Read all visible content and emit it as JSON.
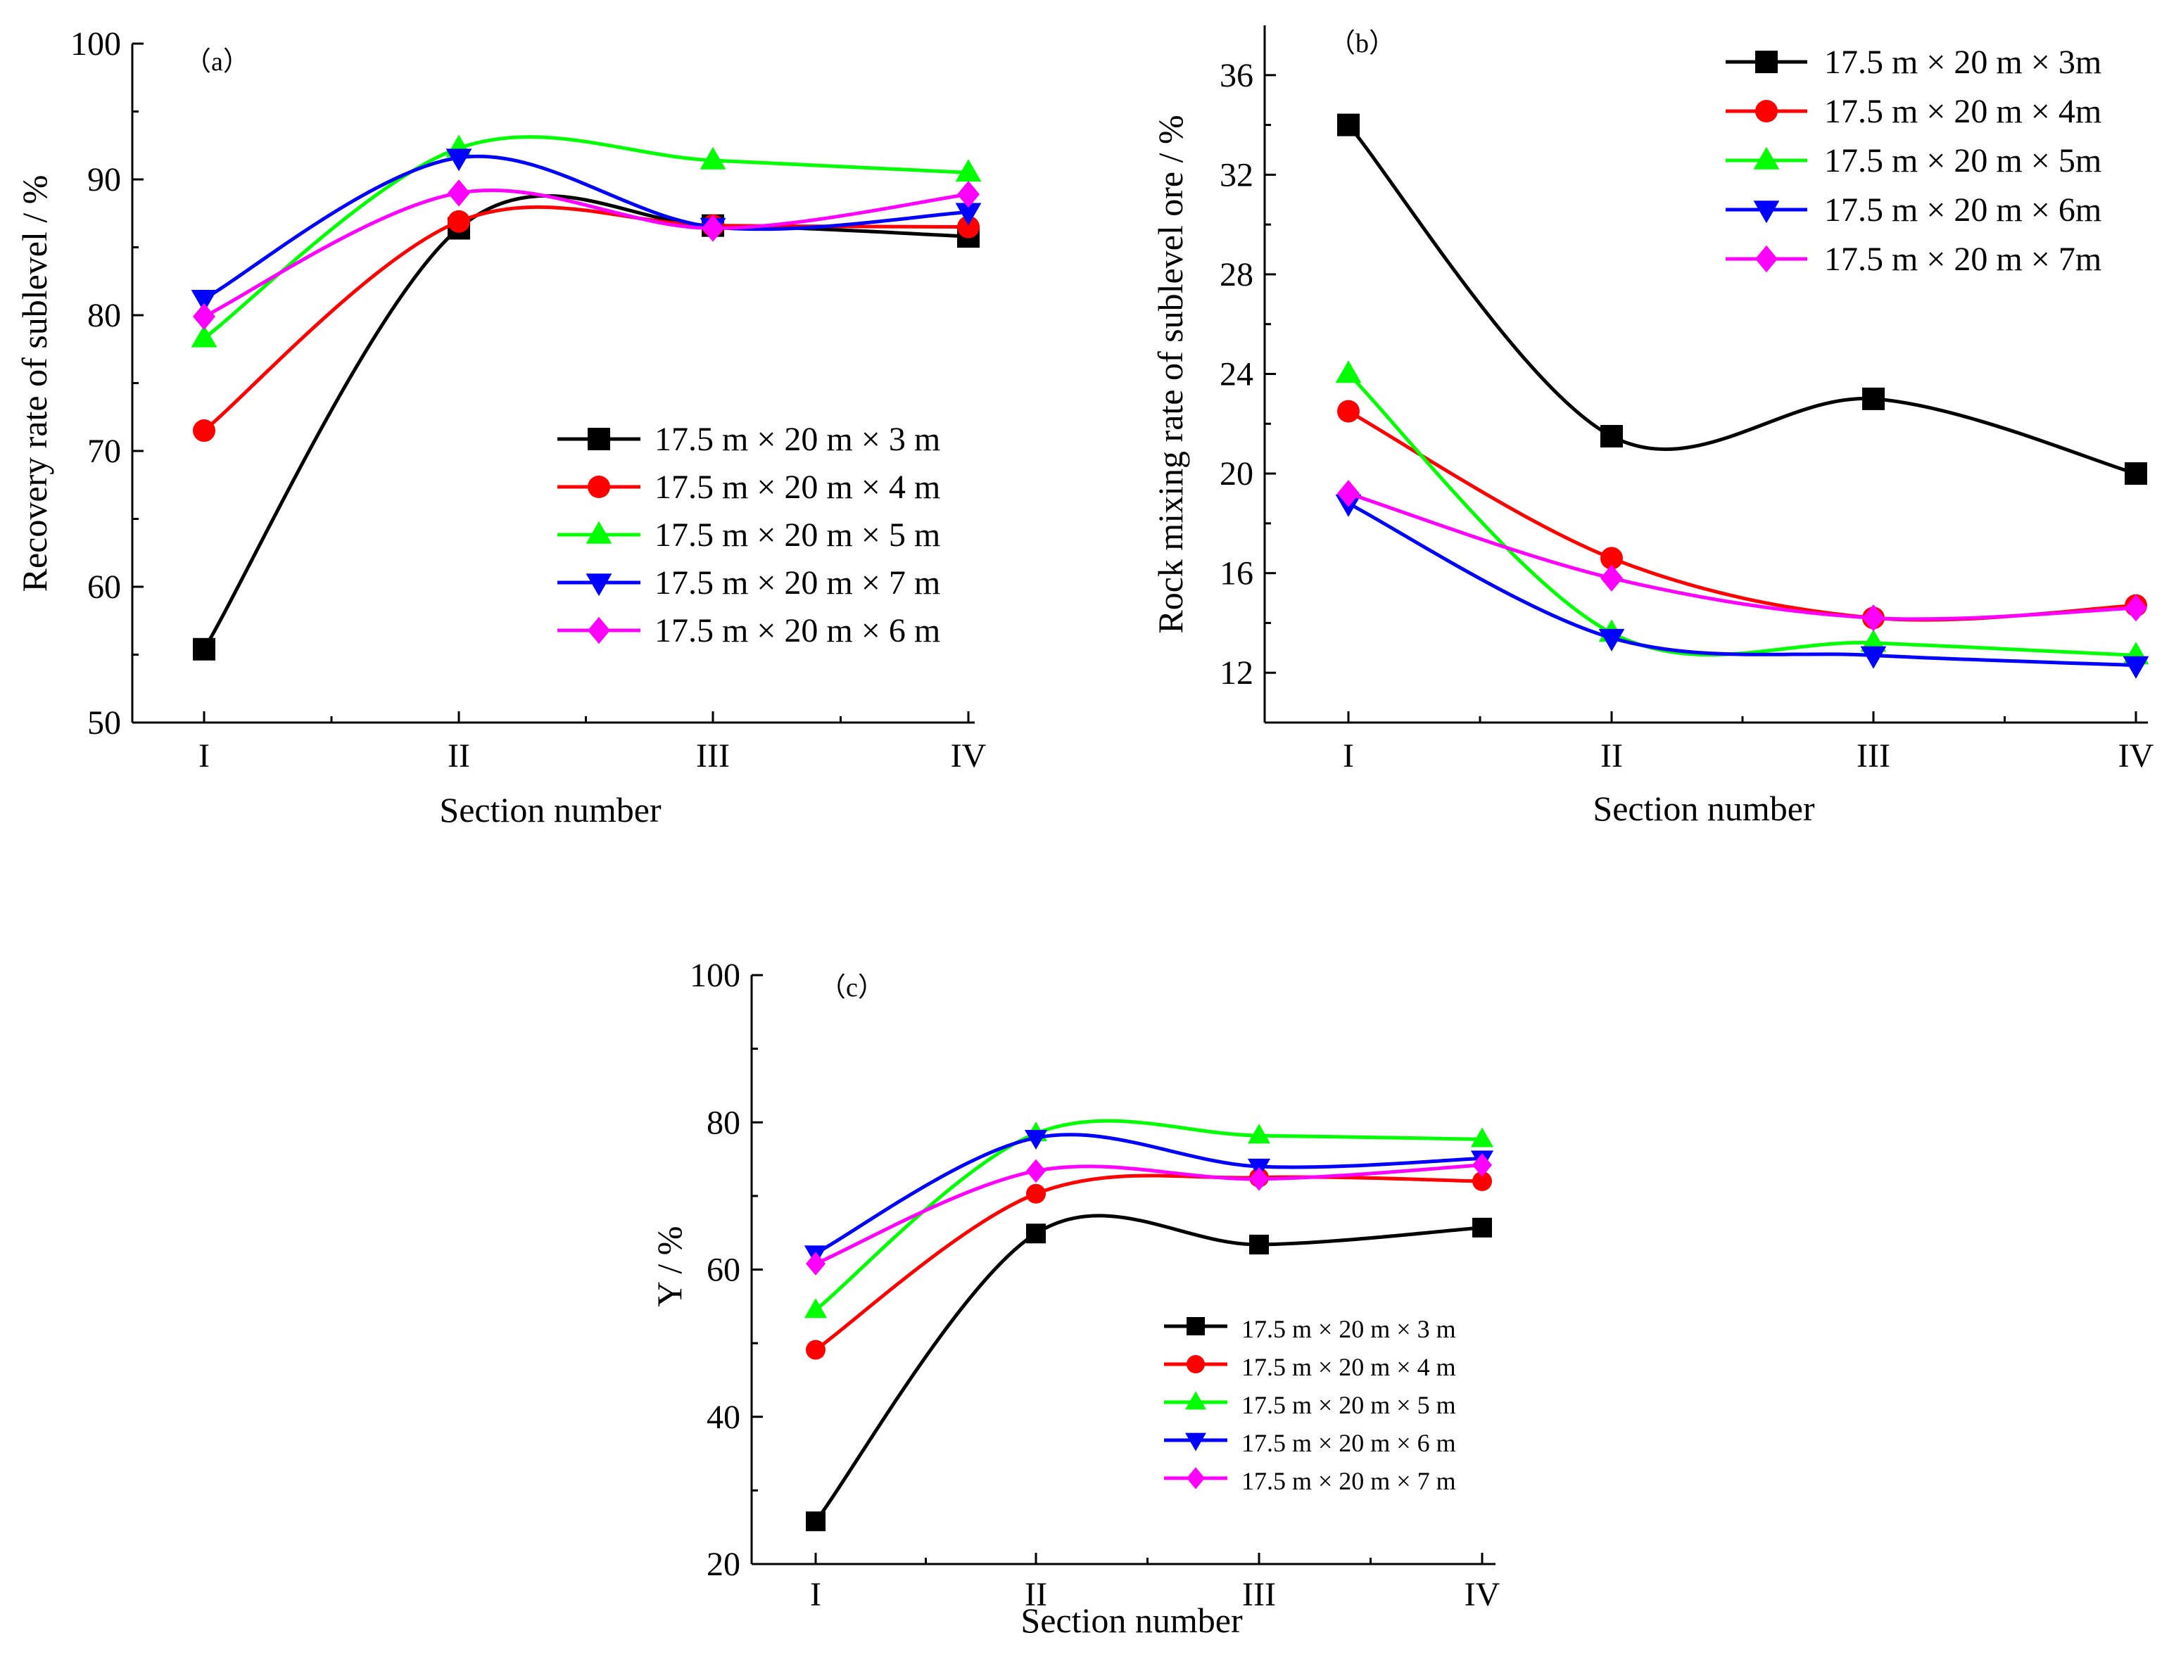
{
  "chart_data": [
    {
      "type": "line",
      "panel_label": "（a）",
      "categories": [
        "I",
        "II",
        "III",
        "IV"
      ],
      "xlabel": "Section number",
      "ylabel": "Recovery rate of sublevel / %",
      "ylim": [
        50,
        100
      ],
      "yticks": [
        "50",
        "60",
        "70",
        "80",
        "90",
        "100"
      ],
      "legend_position": "center-right",
      "series": [
        {
          "name": "17.5 m × 20 m × 3 m",
          "color": "#000000",
          "marker": "square",
          "values": [
            55.4,
            86.4,
            86.6,
            85.8
          ]
        },
        {
          "name": "17.5 m × 20 m × 4 m",
          "color": "#ff0000",
          "marker": "circle",
          "values": [
            71.5,
            86.9,
            86.6,
            86.5
          ]
        },
        {
          "name": "17.5 m × 20 m × 5 m",
          "color": "#00ff00",
          "marker": "triangle-up",
          "values": [
            78.3,
            92.3,
            91.4,
            90.5
          ]
        },
        {
          "name": "17.5 m × 20 m × 7 m",
          "color": "#0000ff",
          "marker": "triangle-down",
          "values": [
            81.2,
            91.6,
            86.5,
            87.6
          ]
        },
        {
          "name": "17.5 m × 20 m × 6 m",
          "color": "#ff00ff",
          "marker": "diamond",
          "values": [
            79.9,
            89.0,
            86.4,
            88.9
          ]
        }
      ]
    },
    {
      "type": "line",
      "panel_label": "（b）",
      "categories": [
        "I",
        "II",
        "III",
        "IV"
      ],
      "xlabel": "Section number",
      "ylabel": "Rock mixing rate of sublevel ore / %",
      "ylim": [
        10,
        38
      ],
      "yticks": [
        "12",
        "16",
        "20",
        "24",
        "28",
        "32",
        "36"
      ],
      "legend_position": "top-right",
      "series": [
        {
          "name": "17.5 m × 20 m × 3m",
          "color": "#000000",
          "marker": "square",
          "values": [
            34.0,
            21.5,
            23.0,
            20.0
          ]
        },
        {
          "name": "17.5 m × 20 m × 4m",
          "color": "#ff0000",
          "marker": "circle",
          "values": [
            22.5,
            16.6,
            14.2,
            14.7
          ]
        },
        {
          "name": "17.5 m × 20 m × 5m",
          "color": "#00ff00",
          "marker": "triangle-up",
          "values": [
            24.0,
            13.6,
            13.2,
            12.7
          ]
        },
        {
          "name": "17.5 m × 20 m × 6m",
          "color": "#0000ff",
          "marker": "triangle-down",
          "values": [
            18.8,
            13.4,
            12.7,
            12.3
          ]
        },
        {
          "name": "17.5 m × 20 m × 7m",
          "color": "#ff00ff",
          "marker": "diamond",
          "values": [
            19.2,
            15.8,
            14.2,
            14.6
          ]
        }
      ]
    },
    {
      "type": "line",
      "panel_label": "（c）",
      "categories": [
        "I",
        "II",
        "III",
        "IV"
      ],
      "xlabel": "Section number",
      "ylabel": "Y / %",
      "ylim": [
        20,
        100
      ],
      "yticks": [
        "20",
        "40",
        "60",
        "80",
        "100"
      ],
      "legend_position": "bottom-right",
      "series": [
        {
          "name": "17.5 m × 20 m × 3 m",
          "color": "#000000",
          "marker": "square",
          "values": [
            25.8,
            64.9,
            63.4,
            65.7
          ]
        },
        {
          "name": "17.5 m × 20 m × 4 m",
          "color": "#ff0000",
          "marker": "circle",
          "values": [
            49.1,
            70.3,
            72.5,
            72.0
          ]
        },
        {
          "name": "17.5 m × 20 m × 5 m",
          "color": "#00ff00",
          "marker": "triangle-up",
          "values": [
            54.5,
            78.5,
            78.2,
            77.7
          ]
        },
        {
          "name": "17.5 m × 20 m × 6 m",
          "color": "#0000ff",
          "marker": "triangle-down",
          "values": [
            62.2,
            77.9,
            74.0,
            75.1
          ]
        },
        {
          "name": "17.5 m × 20 m × 7 m",
          "color": "#ff00ff",
          "marker": "diamond",
          "values": [
            60.8,
            73.4,
            72.3,
            74.2
          ]
        }
      ]
    }
  ]
}
